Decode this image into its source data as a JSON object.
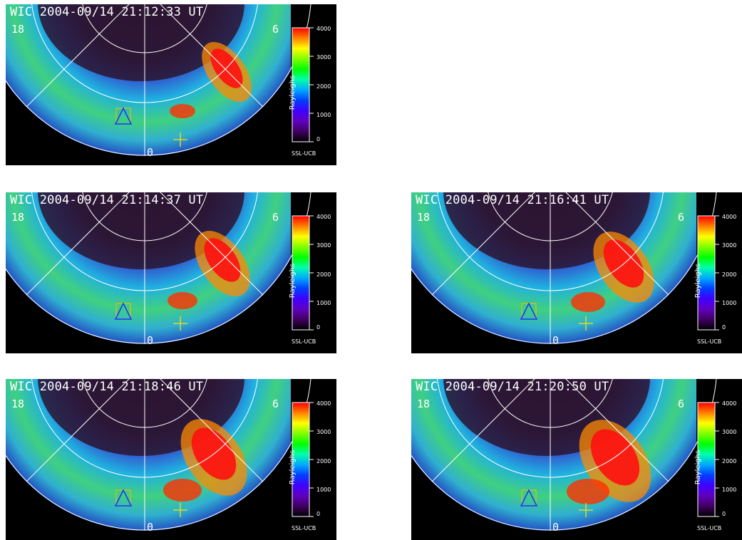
{
  "panels": [
    {
      "id": "p1",
      "title": "WIC 2004-09/14 21:12:33 UT"
    },
    {
      "id": "p2",
      "title": "WIC 2004-09/14 21:14:37 UT"
    },
    {
      "id": "p3",
      "title": "WIC 2004-09/14 21:16:41 UT"
    },
    {
      "id": "p4",
      "title": "WIC 2004-09/14 21:18:46 UT"
    },
    {
      "id": "p5",
      "title": "WIC 2004-09/14 21:20:50 UT"
    }
  ],
  "mlt_labels": {
    "left": "18",
    "right": "6",
    "bottom": "0"
  },
  "colorbar": {
    "max_label": "4000",
    "ticks": [
      "3000",
      "2000",
      "1000"
    ],
    "min_label": "0",
    "unit_label": "Rayleighs",
    "credit": "SSL-UCB",
    "colors": [
      "#ff0000",
      "#ff8000",
      "#ffff00",
      "#80ff00",
      "#00ff00",
      "#00ffaa",
      "#00aaff",
      "#0040ff",
      "#4000ff",
      "#6000c0",
      "#400060",
      "#000000"
    ]
  }
}
